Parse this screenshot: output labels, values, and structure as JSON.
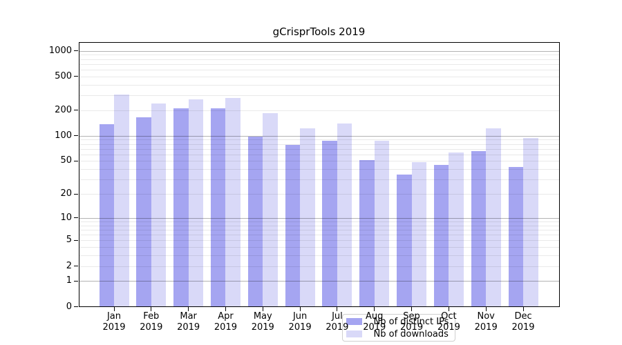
{
  "title": "gCrisprTools 2019",
  "chart_data": {
    "type": "bar",
    "title": "gCrisprTools 2019",
    "categories": [
      "Jan",
      "Feb",
      "Mar",
      "Apr",
      "May",
      "Jun",
      "Jul",
      "Aug",
      "Sep",
      "Oct",
      "Nov",
      "Dec"
    ],
    "category_year": "2019",
    "series": [
      {
        "name": "Nb of distinct IPs",
        "color": "#a5a5f1",
        "values": [
          135,
          163,
          208,
          208,
          96,
          77,
          86,
          50,
          34,
          44,
          64,
          42
        ]
      },
      {
        "name": "Nb of downloads",
        "color": "#d9d9f8",
        "values": [
          301,
          237,
          265,
          273,
          180,
          120,
          138,
          85,
          48,
          62,
          121,
          93
        ]
      }
    ],
    "yscale": "log10(value+1)",
    "ylim": [
      0,
      1265
    ],
    "y_tick_labels": [
      "1000",
      "500",
      "200",
      "100",
      "50",
      "20",
      "10",
      "5",
      "2",
      "1",
      "0"
    ],
    "y_tick_values": [
      1000,
      500,
      200,
      100,
      50,
      20,
      10,
      5,
      2,
      1,
      0
    ],
    "grid": "on",
    "gridline_minor_values": [
      2,
      3,
      4,
      5,
      6,
      7,
      8,
      9,
      20,
      30,
      40,
      50,
      60,
      70,
      80,
      90,
      200,
      300,
      400,
      500,
      600,
      700,
      800,
      900
    ],
    "gridline_major_values": [
      1,
      10,
      100,
      1000
    ],
    "legend_position": "inside-bottom-center",
    "colors": {
      "distinct_ips": "#a5a5f1",
      "downloads": "#d9d9f8",
      "grid_minor": "#e9e9e9",
      "grid_major": "#b2b2b2",
      "axis": "#000000"
    }
  }
}
